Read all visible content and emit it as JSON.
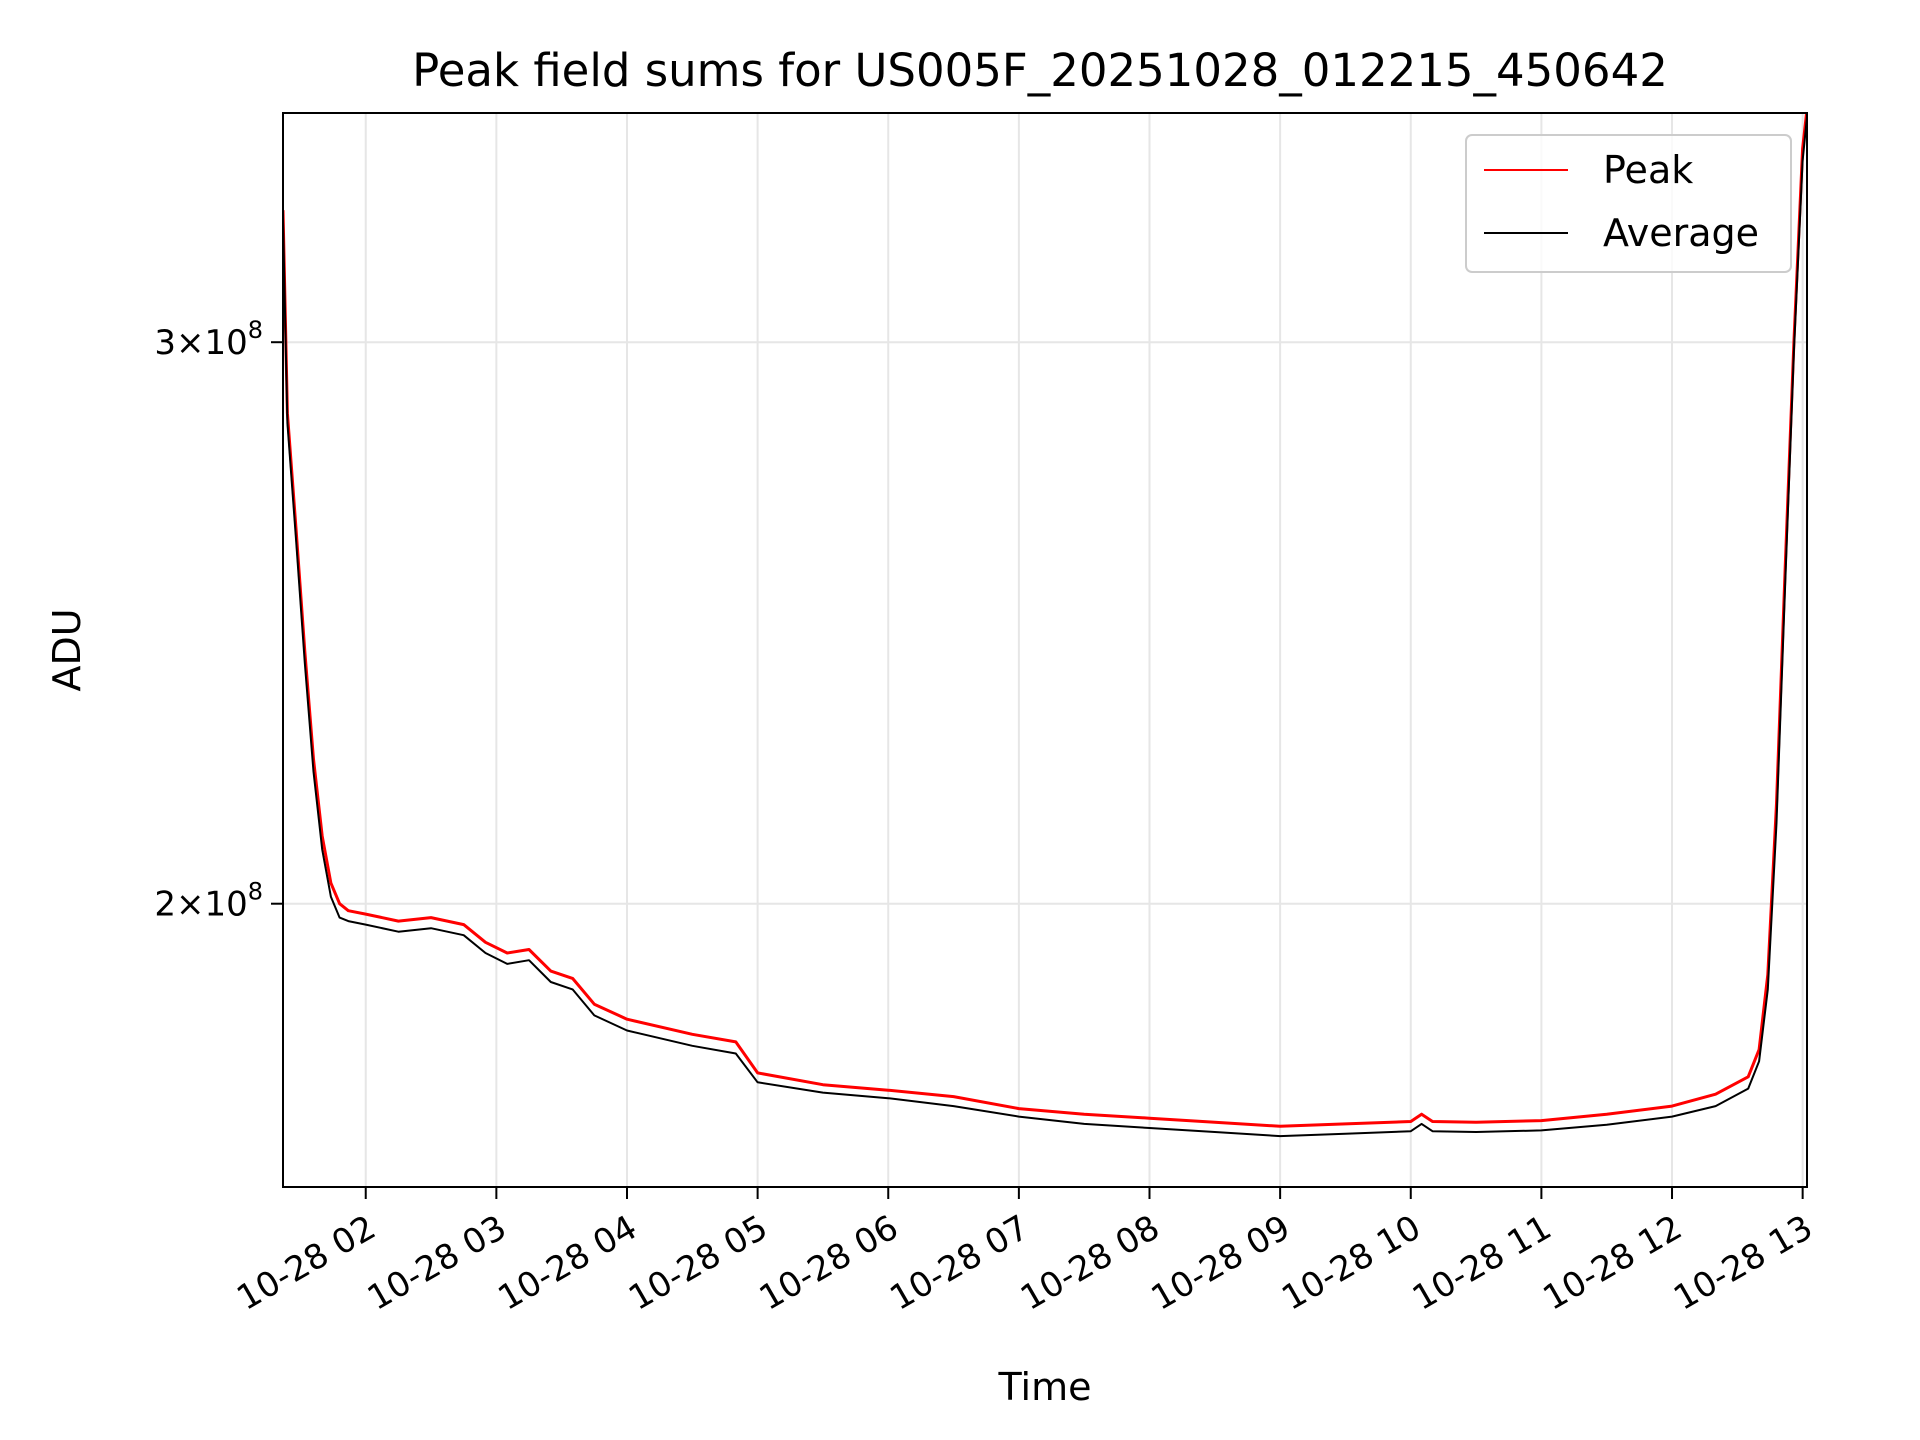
{
  "chart_data": {
    "type": "line",
    "title": "Peak field sums for US005F_20251028_012215_450642",
    "xlabel": "Time",
    "ylabel": "ADU",
    "y_scale": "log",
    "grid": true,
    "legend_position": "top-right",
    "xlim": [
      "2025-10-28 01:22",
      "2025-10-28 13:02"
    ],
    "ylim": [
      163000000,
      354000000
    ],
    "x_ticks": [
      {
        "label": "10-28 02",
        "value": "2025-10-28 02:00"
      },
      {
        "label": "10-28 03",
        "value": "2025-10-28 03:00"
      },
      {
        "label": "10-28 04",
        "value": "2025-10-28 04:00"
      },
      {
        "label": "10-28 05",
        "value": "2025-10-28 05:00"
      },
      {
        "label": "10-28 06",
        "value": "2025-10-28 06:00"
      },
      {
        "label": "10-28 07",
        "value": "2025-10-28 07:00"
      },
      {
        "label": "10-28 08",
        "value": "2025-10-28 08:00"
      },
      {
        "label": "10-28 09",
        "value": "2025-10-28 09:00"
      },
      {
        "label": "10-28 10",
        "value": "2025-10-28 10:00"
      },
      {
        "label": "10-28 11",
        "value": "2025-10-28 11:00"
      },
      {
        "label": "10-28 12",
        "value": "2025-10-28 12:00"
      },
      {
        "label": "10-28 13",
        "value": "2025-10-28 13:00"
      }
    ],
    "y_ticks": [
      {
        "base": "2",
        "exp": "8",
        "value": 200000000
      },
      {
        "base": "3",
        "exp": "8",
        "value": 300000000
      }
    ],
    "series": [
      {
        "name": "Peak",
        "color": "#ff0000",
        "x": [
          "2025-10-28 01:22",
          "2025-10-28 01:24",
          "2025-10-28 01:28",
          "2025-10-28 01:32",
          "2025-10-28 01:36",
          "2025-10-28 01:40",
          "2025-10-28 01:44",
          "2025-10-28 01:48",
          "2025-10-28 01:52",
          "2025-10-28 02:00",
          "2025-10-28 02:15",
          "2025-10-28 02:30",
          "2025-10-28 02:45",
          "2025-10-28 02:55",
          "2025-10-28 03:05",
          "2025-10-28 03:15",
          "2025-10-28 03:25",
          "2025-10-28 03:35",
          "2025-10-28 03:45",
          "2025-10-28 04:00",
          "2025-10-28 04:30",
          "2025-10-28 04:50",
          "2025-10-28 05:00",
          "2025-10-28 05:30",
          "2025-10-28 06:00",
          "2025-10-28 06:30",
          "2025-10-28 07:00",
          "2025-10-28 07:30",
          "2025-10-28 08:00",
          "2025-10-28 08:30",
          "2025-10-28 09:00",
          "2025-10-28 09:30",
          "2025-10-28 10:00",
          "2025-10-28 10:05",
          "2025-10-28 10:10",
          "2025-10-28 10:30",
          "2025-10-28 11:00",
          "2025-10-28 11:30",
          "2025-10-28 12:00",
          "2025-10-28 12:20",
          "2025-10-28 12:35",
          "2025-10-28 12:40",
          "2025-10-28 12:44",
          "2025-10-28 12:48",
          "2025-10-28 12:52",
          "2025-10-28 12:56",
          "2025-10-28 13:00",
          "2025-10-28 13:02"
        ],
        "values": [
          330000000,
          285000000,
          262000000,
          240000000,
          222000000,
          210000000,
          203000000,
          200000000,
          199000000,
          198500000,
          197500000,
          198000000,
          197000000,
          194500000,
          193000000,
          193500000,
          190500000,
          189500000,
          186000000,
          184000000,
          182000000,
          181000000,
          177000000,
          175500000,
          174800000,
          174000000,
          172500000,
          171800000,
          171300000,
          170800000,
          170300000,
          170600000,
          170900000,
          171800000,
          170900000,
          170800000,
          171000000,
          171800000,
          172800000,
          174300000,
          176500000,
          180000000,
          190000000,
          215000000,
          255000000,
          300000000,
          345000000,
          355000000
        ]
      },
      {
        "name": "Average",
        "color": "#000000",
        "x": [
          "2025-10-28 01:22",
          "2025-10-28 01:24",
          "2025-10-28 01:28",
          "2025-10-28 01:32",
          "2025-10-28 01:36",
          "2025-10-28 01:40",
          "2025-10-28 01:44",
          "2025-10-28 01:48",
          "2025-10-28 01:52",
          "2025-10-28 02:00",
          "2025-10-28 02:15",
          "2025-10-28 02:30",
          "2025-10-28 02:45",
          "2025-10-28 02:55",
          "2025-10-28 03:05",
          "2025-10-28 03:15",
          "2025-10-28 03:25",
          "2025-10-28 03:35",
          "2025-10-28 03:45",
          "2025-10-28 04:00",
          "2025-10-28 04:30",
          "2025-10-28 04:50",
          "2025-10-28 05:00",
          "2025-10-28 05:30",
          "2025-10-28 06:00",
          "2025-10-28 06:30",
          "2025-10-28 07:00",
          "2025-10-28 07:30",
          "2025-10-28 08:00",
          "2025-10-28 08:30",
          "2025-10-28 09:00",
          "2025-10-28 09:30",
          "2025-10-28 10:00",
          "2025-10-28 10:05",
          "2025-10-28 10:10",
          "2025-10-28 10:30",
          "2025-10-28 11:00",
          "2025-10-28 11:30",
          "2025-10-28 12:00",
          "2025-10-28 12:20",
          "2025-10-28 12:35",
          "2025-10-28 12:40",
          "2025-10-28 12:44",
          "2025-10-28 12:48",
          "2025-10-28 12:52",
          "2025-10-28 12:56",
          "2025-10-28 13:00",
          "2025-10-28 13:02"
        ],
        "values": [
          328000000,
          283000000,
          260000000,
          238000000,
          220000000,
          208000000,
          201000000,
          198000000,
          197500000,
          197000000,
          196000000,
          196500000,
          195500000,
          193000000,
          191500000,
          192000000,
          189000000,
          188000000,
          184500000,
          182500000,
          180500000,
          179500000,
          175800000,
          174500000,
          173800000,
          172800000,
          171500000,
          170600000,
          170100000,
          169600000,
          169100000,
          169400000,
          169700000,
          170600000,
          169700000,
          169600000,
          169800000,
          170500000,
          171500000,
          172800000,
          175000000,
          178500000,
          188000000,
          212000000,
          252000000,
          298000000,
          342000000,
          353000000
        ]
      }
    ]
  }
}
